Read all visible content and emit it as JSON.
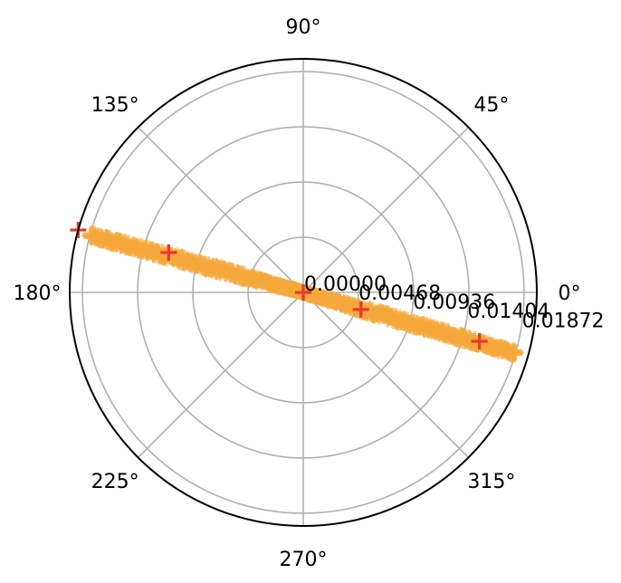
{
  "chart_data": {
    "type": "scatter",
    "projection": "polar",
    "title": "",
    "angle_ticks": [
      "0°",
      "45°",
      "90°",
      "135°",
      "180°",
      "225°",
      "270°",
      "315°"
    ],
    "angle_tick_values_deg": [
      0,
      45,
      90,
      135,
      180,
      225,
      270,
      315
    ],
    "radial_ticks": [
      "0.00000",
      "0.00468",
      "0.00936",
      "0.01404",
      "0.01872"
    ],
    "radial_tick_values": [
      0,
      0.00468,
      0.00936,
      0.01404,
      0.01872
    ],
    "rlim": [
      0,
      0.0198
    ],
    "grid": true,
    "series": [
      {
        "marker": "+",
        "color": "#f5a83a",
        "alpha": 0.55,
        "description_angles_deg": [
          -16,
          165
        ],
        "band_from_r": 0,
        "band_to_r": 0.0187,
        "band_halfwidth_deg": 2.2
      },
      {
        "marker": "+",
        "color": "#e8392a",
        "points": [
          {
            "theta": 0,
            "r": 0.0
          },
          {
            "theta": -16.5,
            "r": 0.0051
          },
          {
            "theta": -15.5,
            "r": 0.0155
          },
          {
            "theta": 163.5,
            "r": 0.0119
          },
          {
            "theta": 164.5,
            "r": 0.0198
          }
        ]
      }
    ]
  }
}
